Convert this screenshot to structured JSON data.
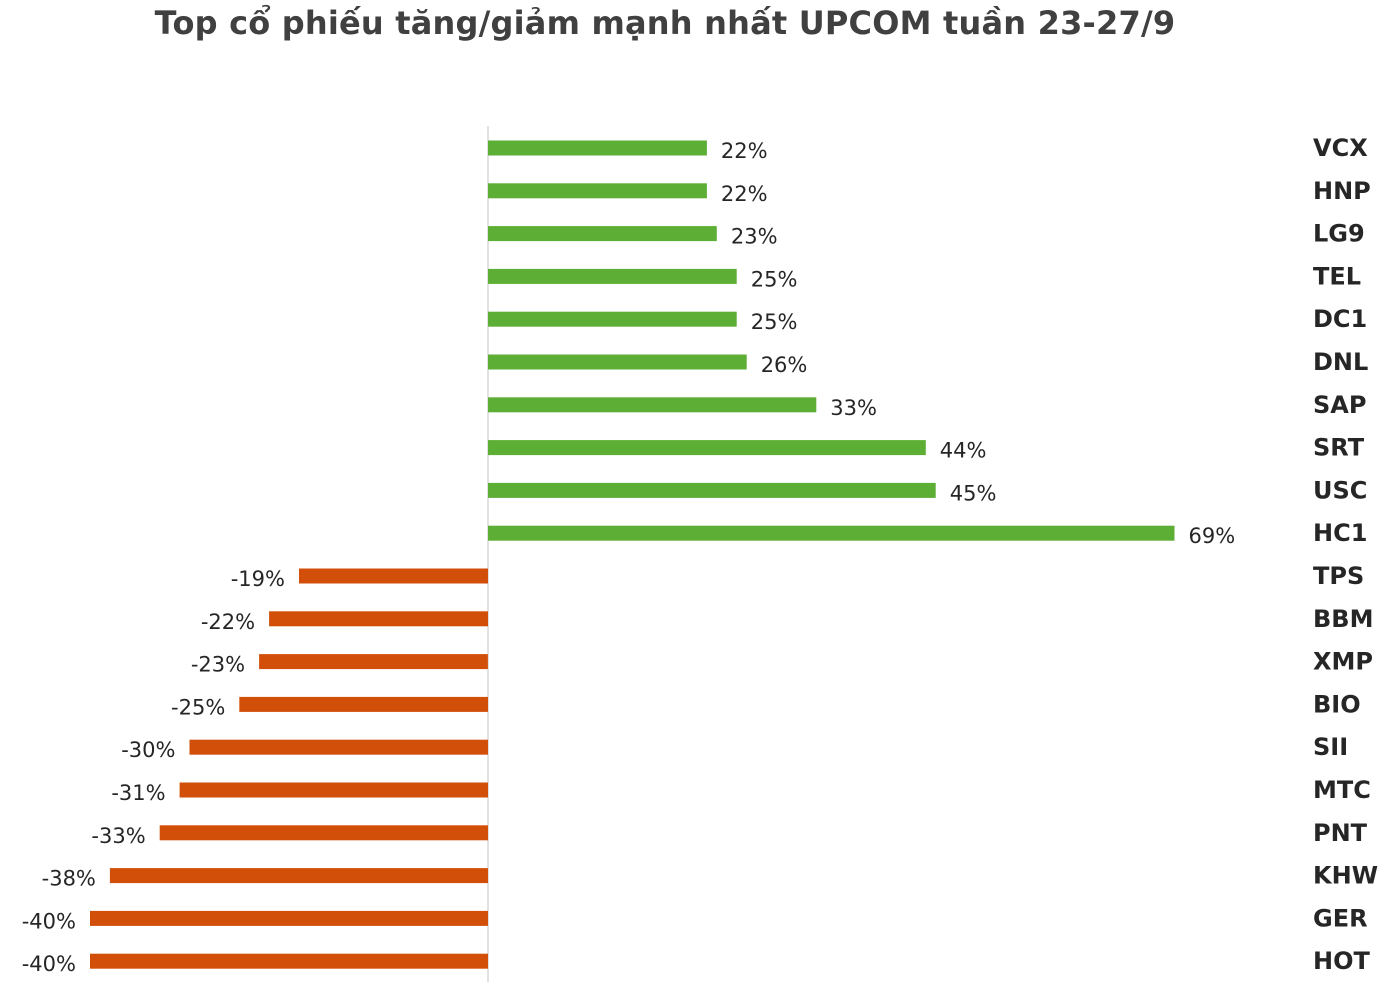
{
  "chart_data": {
    "type": "bar",
    "orientation": "horizontal",
    "title": "Top cổ phiếu tăng/giảm mạnh nhất UPCOM tuần 23-27/9",
    "categories": [
      "VCX",
      "HNP",
      "LG9",
      "TEL",
      "DC1",
      "DNL",
      "SAP",
      "SRT",
      "USC",
      "HC1",
      "TPS",
      "BBM",
      "XMP",
      "BIO",
      "SII",
      "MTC",
      "PNT",
      "KHW",
      "GER",
      "HOT"
    ],
    "values": [
      22,
      22,
      23,
      25,
      25,
      26,
      33,
      44,
      45,
      69,
      -19,
      -22,
      -23,
      -25,
      -30,
      -31,
      -33,
      -38,
      -40,
      -40
    ],
    "value_labels": [
      "22%",
      "22%",
      "23%",
      "25%",
      "25%",
      "26%",
      "33%",
      "44%",
      "45%",
      "69%",
      "-19%",
      "-22%",
      "-23%",
      "-25%",
      "-30%",
      "-31%",
      "-33%",
      "-38%",
      "-40%",
      "-40%"
    ],
    "value_unit": "%",
    "xlim": [
      -40,
      69
    ],
    "grid": false,
    "legend": "none",
    "colors": {
      "positive": "#5DAE35",
      "negative": "#D24F09",
      "axis": "#D9D9D9"
    }
  }
}
